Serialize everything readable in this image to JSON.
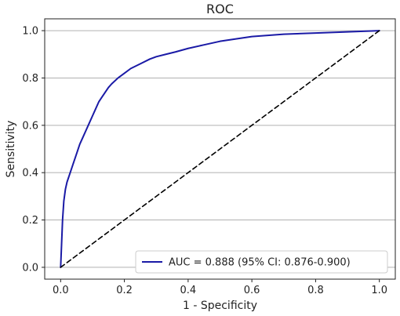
{
  "chart_data": {
    "type": "line",
    "title": "ROC",
    "xlabel": "1 - Specificity",
    "ylabel": "Sensitivity",
    "xlim": [
      -0.05,
      1.05
    ],
    "ylim": [
      -0.05,
      1.05
    ],
    "xticks": [
      "0.0",
      "0.2",
      "0.4",
      "0.6",
      "0.8",
      "1.0"
    ],
    "yticks": [
      "0.0",
      "0.2",
      "0.4",
      "0.6",
      "0.8",
      "1.0"
    ],
    "grid": "horizontal",
    "legend_position": "lower-right",
    "series": [
      {
        "name": "AUC = 0.888 (95% CI: 0.876-0.900)",
        "color": "#1a1aa6",
        "style": "solid",
        "x": [
          0.0,
          0.003,
          0.006,
          0.01,
          0.015,
          0.02,
          0.03,
          0.04,
          0.05,
          0.06,
          0.07,
          0.08,
          0.09,
          0.1,
          0.11,
          0.12,
          0.13,
          0.14,
          0.15,
          0.16,
          0.18,
          0.2,
          0.22,
          0.25,
          0.28,
          0.3,
          0.33,
          0.36,
          0.4,
          0.45,
          0.5,
          0.55,
          0.6,
          0.65,
          0.7,
          0.8,
          0.9,
          1.0
        ],
        "y": [
          0.0,
          0.1,
          0.2,
          0.28,
          0.33,
          0.36,
          0.4,
          0.44,
          0.48,
          0.52,
          0.55,
          0.58,
          0.61,
          0.64,
          0.67,
          0.7,
          0.72,
          0.74,
          0.76,
          0.775,
          0.8,
          0.82,
          0.84,
          0.86,
          0.88,
          0.89,
          0.9,
          0.91,
          0.925,
          0.94,
          0.955,
          0.965,
          0.975,
          0.98,
          0.985,
          0.99,
          0.995,
          1.0
        ]
      },
      {
        "color": "#000000",
        "style": "dashed",
        "x": [
          0,
          1
        ],
        "y": [
          0,
          1
        ]
      }
    ],
    "legend": [
      {
        "label": "AUC = 0.888 (95% CI: 0.876-0.900)",
        "color": "#1a1aa6"
      }
    ]
  }
}
